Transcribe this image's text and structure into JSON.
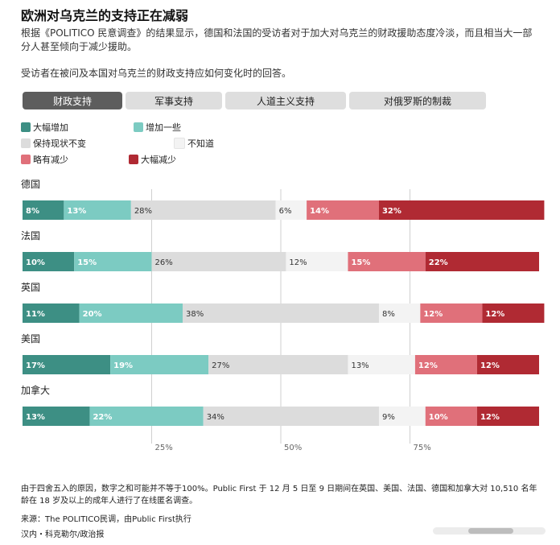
{
  "title": "欧洲对乌克兰的支持正在减弱",
  "subtitle": "根据《POLITICO 民意调查》的结果显示，德国和法国的受访者对于加大对乌克兰的财政援助态度冷淡，而且相当大一部分人甚至倾向于减少援助。",
  "question": "受访者在被问及本国对乌克兰的财政支持应如何变化时的回答。",
  "tabs": [
    {
      "label": "财政支持",
      "active": true
    },
    {
      "label": "军事支持",
      "active": false
    },
    {
      "label": "人道主义支持",
      "active": false
    },
    {
      "label": "对俄罗斯的制裁",
      "active": false
    }
  ],
  "footnote": "由于四舍五入的原因，数字之和可能并不等于100%。Public First 于 12 月 5 日至 9 日期间在英国、美国、法国、德国和加拿大对 10,510 名年龄在 18 岁及以上的成年人进行了在线匿名调查。",
  "source": "来源：The POLITICO民调，由Public First执行",
  "credit": "汉内・科克勒尔/政治报",
  "chart_data": {
    "type": "bar",
    "stacked": true,
    "orientation": "horizontal",
    "categories": [
      "德国",
      "法国",
      "英国",
      "美国",
      "加拿大"
    ],
    "series": [
      {
        "name": "大幅增加",
        "color": "#3d8f84",
        "values": [
          8,
          10,
          11,
          17,
          13
        ]
      },
      {
        "name": "增加一些",
        "color": "#7ccbc2",
        "values": [
          13,
          15,
          20,
          19,
          22
        ]
      },
      {
        "name": "保持现状不变",
        "color": "#dcdcdc",
        "values": [
          28,
          26,
          38,
          27,
          34
        ]
      },
      {
        "name": "不知道",
        "color": "#f3f3f3",
        "values": [
          6,
          12,
          8,
          13,
          9
        ]
      },
      {
        "name": "略有减少",
        "color": "#e0707a",
        "values": [
          14,
          15,
          12,
          12,
          10
        ]
      },
      {
        "name": "大幅减少",
        "color": "#b02a33",
        "values": [
          32,
          22,
          12,
          12,
          12
        ]
      }
    ],
    "x_ticks": [
      "25%",
      "50%",
      "75%"
    ],
    "x_tick_values": [
      25,
      50,
      75
    ],
    "xlim": [
      0,
      100
    ],
    "grid": true
  }
}
